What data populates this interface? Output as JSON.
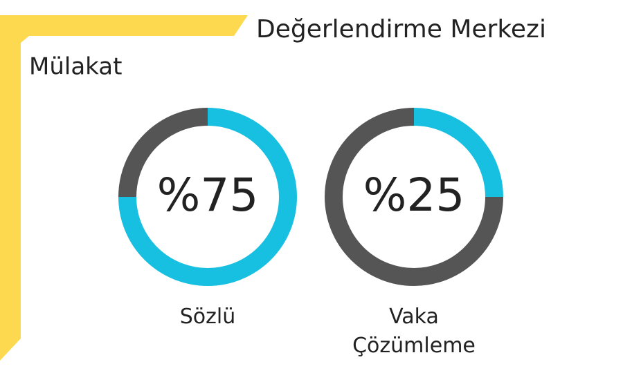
{
  "title": "Değerlendirme Merkezi",
  "subtitle": "Mülakat",
  "chart_data": [
    {
      "type": "donut",
      "label": "Sözlü",
      "values": [
        75,
        25
      ],
      "value_labels": [
        "%75",
        null
      ],
      "colors": [
        "#17bfe0",
        "#555555"
      ]
    },
    {
      "type": "donut",
      "label": "Vaka Çözümleme",
      "values": [
        25,
        75
      ],
      "value_labels": [
        "%25",
        null
      ],
      "colors": [
        "#17bfe0",
        "#555555"
      ]
    }
  ]
}
